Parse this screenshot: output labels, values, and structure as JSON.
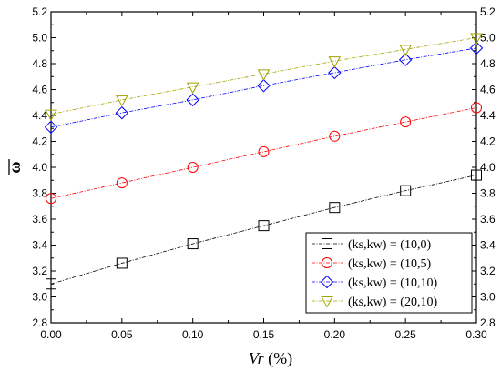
{
  "chart_data": {
    "type": "line",
    "title": "",
    "xlabel": "Vr (%)",
    "xlabel_parts": {
      "var": "Vr",
      "unit": " (%)"
    },
    "ylabel": "ω",
    "ylabel_overbar": true,
    "xlim": [
      0.0,
      0.3
    ],
    "ylim": [
      2.8,
      5.2
    ],
    "xticks": [
      "0.00",
      "0.05",
      "0.10",
      "0.15",
      "0.20",
      "0.25",
      "0.30"
    ],
    "yticks": [
      "2.8",
      "3.0",
      "3.2",
      "3.4",
      "3.6",
      "3.8",
      "4.0",
      "4.2",
      "4.4",
      "4.6",
      "4.8",
      "5.0",
      "5.2"
    ],
    "right_axis_labels": true,
    "grid": false,
    "legend_position": "bottom-right",
    "x": [
      0.0,
      0.05,
      0.1,
      0.15,
      0.2,
      0.25,
      0.3
    ],
    "series": [
      {
        "name": "(ks,kw) = (10,0)",
        "marker": "square",
        "color": "#000000",
        "values": [
          3.1,
          3.26,
          3.41,
          3.55,
          3.69,
          3.82,
          3.94
        ]
      },
      {
        "name": "(ks,kw)  = (10,5)",
        "marker": "circle",
        "color": "#ff0000",
        "values": [
          3.76,
          3.88,
          4.0,
          4.12,
          4.24,
          4.35,
          4.46
        ]
      },
      {
        "name": "(ks,kw)  = (10,10)",
        "marker": "diamond",
        "color": "#0000ff",
        "values": [
          4.31,
          4.42,
          4.52,
          4.63,
          4.73,
          4.83,
          4.92
        ]
      },
      {
        "name": "(ks,kw) = (20,10)",
        "marker": "triangle-down",
        "color": "#a3a300",
        "values": [
          4.41,
          4.52,
          4.62,
          4.72,
          4.82,
          4.91,
          5.0
        ]
      }
    ]
  }
}
